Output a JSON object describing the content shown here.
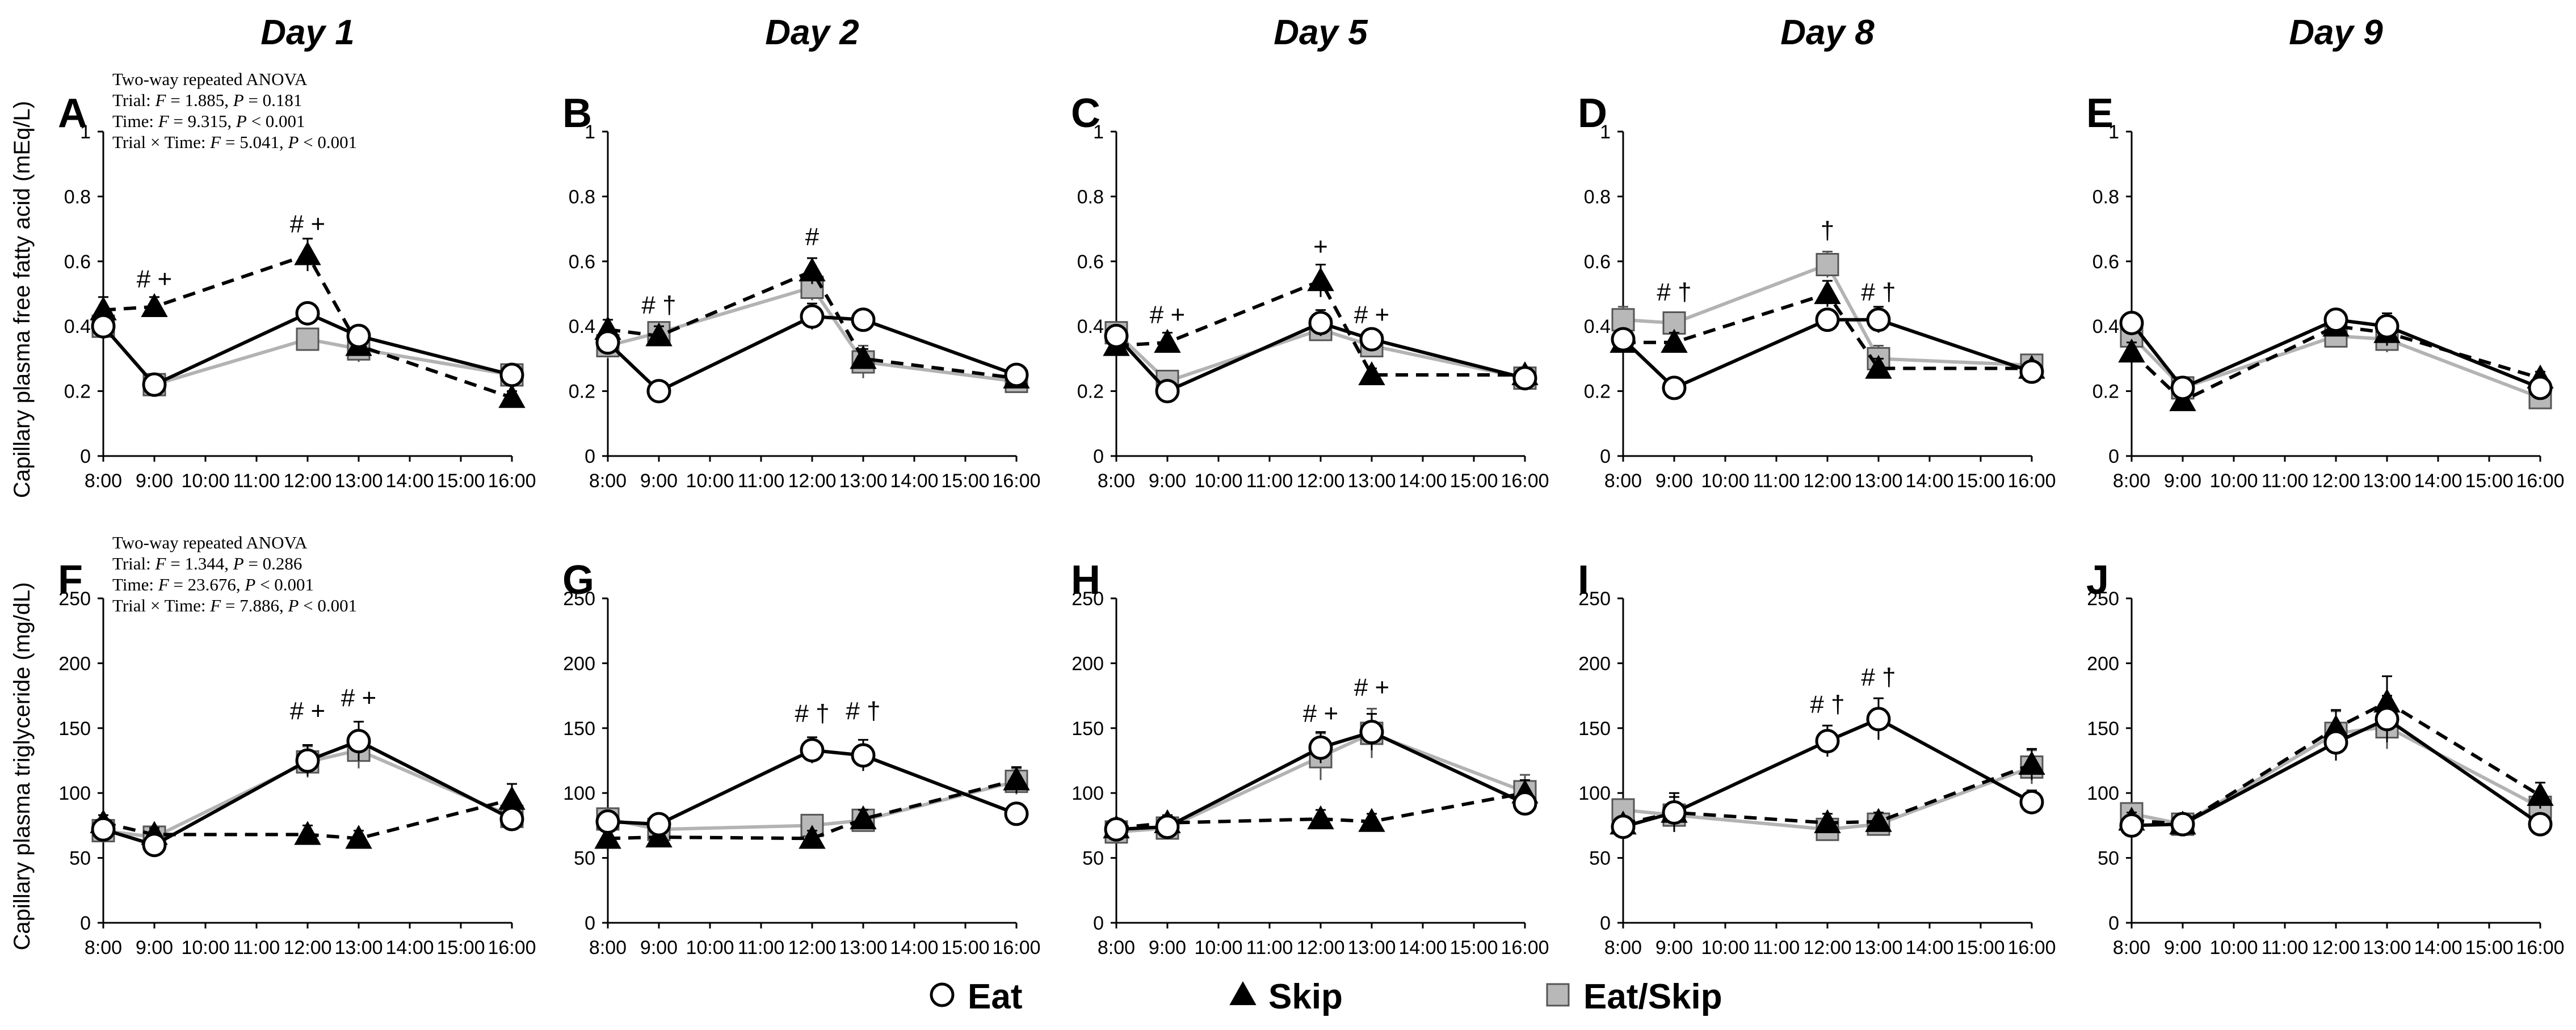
{
  "figure": {
    "day_titles": [
      "Day 1",
      "Day 2",
      "Day 5",
      "Day 8",
      "Day 9"
    ],
    "row_ylabels": [
      "Capillary plasma free fatty acid (mEq/L)",
      "Capillary plasma triglyceride (mg/dL)"
    ],
    "legend": [
      {
        "label": "Eat",
        "marker": "circle-open",
        "line": "solid-black"
      },
      {
        "label": "Skip",
        "marker": "triangle-filled",
        "line": "dashed-black"
      },
      {
        "label": "Eat/Skip",
        "marker": "square-gray",
        "line": "solid-gray"
      }
    ],
    "colors": {
      "eat": "#000000",
      "skip": "#000000",
      "eatskip_line": "#b3b3b3",
      "eatskip_fill": "#b8b8b8"
    },
    "anova": [
      {
        "title": "Two-way repeated ANOVA",
        "trial": [
          "Trial: ",
          "F",
          " = 1.885, ",
          "P",
          " = 0.181"
        ],
        "time": [
          "Time: ",
          "F",
          " = 9.315, ",
          "P",
          " < 0.001"
        ],
        "interaction": [
          "Trial × Time: ",
          "F",
          " = 5.041, ",
          "P",
          " < 0.001"
        ]
      },
      {
        "title": "Two-way repeated ANOVA",
        "trial": [
          "Trial: ",
          "F",
          " = 1.344, ",
          "P",
          " = 0.286"
        ],
        "time": [
          "Time: ",
          "F",
          " = 23.676, ",
          "P",
          " < 0.001"
        ],
        "interaction": [
          "Trial × Time: ",
          "F",
          " = 7.886, ",
          "P",
          " < 0.001"
        ]
      }
    ]
  },
  "chart_data": [
    {
      "panel": "A",
      "type": "line",
      "day": "Day 1",
      "row": 0,
      "col": 0,
      "x": [
        "8:00",
        "9:00",
        "12:00",
        "13:00",
        "16:00"
      ],
      "x_hours": [
        8,
        9,
        12,
        13,
        16
      ],
      "xticks": [
        "8:00",
        "9:00",
        "10:00",
        "11:00",
        "12:00",
        "13:00",
        "14:00",
        "15:00",
        "16:00"
      ],
      "ylim": [
        0,
        1
      ],
      "yticks": [
        0,
        0.2,
        0.4,
        0.6,
        0.8,
        1
      ],
      "ytick_labels": [
        "0",
        "0.2",
        "0.4",
        "0.6",
        "0.8",
        "1"
      ],
      "series": [
        {
          "name": "Eat",
          "values": [
            0.4,
            0.22,
            0.44,
            0.37,
            0.25
          ],
          "err": [
            0.03,
            0.02,
            0.03,
            0.03,
            0.02
          ]
        },
        {
          "name": "Skip",
          "values": [
            0.45,
            0.46,
            0.62,
            0.34,
            0.18
          ],
          "err": [
            0.04,
            0.03,
            0.05,
            0.03,
            0.02
          ]
        },
        {
          "name": "Eat/Skip",
          "values": [
            0.4,
            0.22,
            0.36,
            0.33,
            0.25
          ],
          "err": [
            0.03,
            0.02,
            0.03,
            0.04,
            0.03
          ]
        }
      ],
      "annotations": [
        {
          "x": 9,
          "y": 0.52,
          "text": "# +"
        },
        {
          "x": 12,
          "y": 0.69,
          "text": "# +"
        }
      ]
    },
    {
      "panel": "B",
      "type": "line",
      "day": "Day 2",
      "row": 0,
      "col": 1,
      "x": [
        "8:00",
        "9:00",
        "12:00",
        "13:00",
        "16:00"
      ],
      "x_hours": [
        8,
        9,
        12,
        13,
        16
      ],
      "xticks": [
        "8:00",
        "9:00",
        "10:00",
        "11:00",
        "12:00",
        "13:00",
        "14:00",
        "15:00",
        "16:00"
      ],
      "ylim": [
        0,
        1
      ],
      "yticks": [
        0,
        0.2,
        0.4,
        0.6,
        0.8,
        1
      ],
      "ytick_labels": [
        "0",
        "0.2",
        "0.4",
        "0.6",
        "0.8",
        "1"
      ],
      "series": [
        {
          "name": "Eat",
          "values": [
            0.35,
            0.2,
            0.43,
            0.42,
            0.25
          ],
          "err": [
            0.03,
            0.02,
            0.04,
            0.03,
            0.02
          ]
        },
        {
          "name": "Skip",
          "values": [
            0.39,
            0.37,
            0.57,
            0.3,
            0.24
          ],
          "err": [
            0.03,
            0.03,
            0.04,
            0.03,
            0.02
          ]
        },
        {
          "name": "Eat/Skip",
          "values": [
            0.34,
            0.38,
            0.52,
            0.29,
            0.23
          ],
          "err": [
            0.04,
            0.03,
            0.04,
            0.05,
            0.02
          ]
        }
      ],
      "annotations": [
        {
          "x": 9,
          "y": 0.44,
          "text": "# †"
        },
        {
          "x": 12,
          "y": 0.65,
          "text": "#"
        }
      ]
    },
    {
      "panel": "C",
      "type": "line",
      "day": "Day 5",
      "row": 0,
      "col": 2,
      "x": [
        "8:00",
        "9:00",
        "12:00",
        "13:00",
        "16:00"
      ],
      "x_hours": [
        8,
        9,
        12,
        13,
        16
      ],
      "xticks": [
        "8:00",
        "9:00",
        "10:00",
        "11:00",
        "12:00",
        "13:00",
        "14:00",
        "15:00",
        "16:00"
      ],
      "ylim": [
        0,
        1
      ],
      "yticks": [
        0,
        0.2,
        0.4,
        0.6,
        0.8,
        1
      ],
      "ytick_labels": [
        "0",
        "0.2",
        "0.4",
        "0.6",
        "0.8",
        "1"
      ],
      "series": [
        {
          "name": "Eat",
          "values": [
            0.37,
            0.2,
            0.41,
            0.36,
            0.24
          ],
          "err": [
            0.03,
            0.02,
            0.04,
            0.03,
            0.02
          ]
        },
        {
          "name": "Skip",
          "values": [
            0.34,
            0.35,
            0.54,
            0.25,
            0.25
          ],
          "err": [
            0.03,
            0.03,
            0.05,
            0.02,
            0.02
          ]
        },
        {
          "name": "Eat/Skip",
          "values": [
            0.38,
            0.23,
            0.39,
            0.34,
            0.24
          ],
          "err": [
            0.03,
            0.02,
            0.03,
            0.03,
            0.02
          ]
        }
      ],
      "annotations": [
        {
          "x": 9,
          "y": 0.41,
          "text": "# +"
        },
        {
          "x": 12,
          "y": 0.62,
          "text": "+"
        },
        {
          "x": 13,
          "y": 0.41,
          "text": "# +"
        }
      ]
    },
    {
      "panel": "D",
      "type": "line",
      "day": "Day 8",
      "row": 0,
      "col": 3,
      "x": [
        "8:00",
        "9:00",
        "12:00",
        "13:00",
        "16:00"
      ],
      "x_hours": [
        8,
        9,
        12,
        13,
        16
      ],
      "xticks": [
        "8:00",
        "9:00",
        "10:00",
        "11:00",
        "12:00",
        "13:00",
        "14:00",
        "15:00",
        "16:00"
      ],
      "ylim": [
        0,
        1
      ],
      "yticks": [
        0,
        0.2,
        0.4,
        0.6,
        0.8,
        1
      ],
      "ytick_labels": [
        "0",
        "0.2",
        "0.4",
        "0.6",
        "0.8",
        "1"
      ],
      "series": [
        {
          "name": "Eat",
          "values": [
            0.36,
            0.21,
            0.42,
            0.42,
            0.26
          ],
          "err": [
            0.03,
            0.02,
            0.03,
            0.04,
            0.02
          ]
        },
        {
          "name": "Skip",
          "values": [
            0.35,
            0.35,
            0.5,
            0.27,
            0.27
          ],
          "err": [
            0.03,
            0.03,
            0.04,
            0.03,
            0.02
          ]
        },
        {
          "name": "Eat/Skip",
          "values": [
            0.42,
            0.41,
            0.59,
            0.3,
            0.28
          ],
          "err": [
            0.04,
            0.03,
            0.04,
            0.04,
            0.02
          ]
        }
      ],
      "annotations": [
        {
          "x": 9,
          "y": 0.48,
          "text": "# †"
        },
        {
          "x": 12,
          "y": 0.67,
          "text": "†"
        },
        {
          "x": 13,
          "y": 0.48,
          "text": "# †"
        }
      ]
    },
    {
      "panel": "E",
      "type": "line",
      "day": "Day 9",
      "row": 0,
      "col": 4,
      "x": [
        "8:00",
        "9:00",
        "12:00",
        "13:00",
        "16:00"
      ],
      "x_hours": [
        8,
        9,
        12,
        13,
        16
      ],
      "xticks": [
        "8:00",
        "9:00",
        "10:00",
        "11:00",
        "12:00",
        "13:00",
        "14:00",
        "15:00",
        "16:00"
      ],
      "ylim": [
        0,
        1
      ],
      "yticks": [
        0,
        0.2,
        0.4,
        0.6,
        0.8,
        1
      ],
      "ytick_labels": [
        "0",
        "0.2",
        "0.4",
        "0.6",
        "0.8",
        "1"
      ],
      "series": [
        {
          "name": "Eat",
          "values": [
            0.41,
            0.21,
            0.42,
            0.4,
            0.21
          ],
          "err": [
            0.03,
            0.02,
            0.03,
            0.04,
            0.02
          ]
        },
        {
          "name": "Skip",
          "values": [
            0.32,
            0.17,
            0.4,
            0.38,
            0.24
          ],
          "err": [
            0.03,
            0.02,
            0.03,
            0.04,
            0.02
          ]
        },
        {
          "name": "Eat/Skip",
          "values": [
            0.37,
            0.21,
            0.37,
            0.36,
            0.18
          ],
          "err": [
            0.03,
            0.02,
            0.03,
            0.04,
            0.02
          ]
        }
      ],
      "annotations": []
    },
    {
      "panel": "F",
      "type": "line",
      "day": "Day 1",
      "row": 1,
      "col": 0,
      "x": [
        "8:00",
        "9:00",
        "12:00",
        "13:00",
        "16:00"
      ],
      "x_hours": [
        8,
        9,
        12,
        13,
        16
      ],
      "xticks": [
        "8:00",
        "9:00",
        "10:00",
        "11:00",
        "12:00",
        "13:00",
        "14:00",
        "15:00",
        "16:00"
      ],
      "ylim": [
        0,
        250
      ],
      "yticks": [
        0,
        50,
        100,
        150,
        200,
        250
      ],
      "ytick_labels": [
        "0",
        "50",
        "100",
        "150",
        "200",
        "250"
      ],
      "series": [
        {
          "name": "Eat",
          "values": [
            72,
            60,
            125,
            140,
            80
          ],
          "err": [
            6,
            5,
            12,
            15,
            8
          ]
        },
        {
          "name": "Skip",
          "values": [
            77,
            68,
            68,
            65,
            95
          ],
          "err": [
            6,
            5,
            7,
            6,
            12
          ]
        },
        {
          "name": "Eat/Skip",
          "values": [
            71,
            66,
            124,
            133,
            82
          ],
          "err": [
            6,
            5,
            12,
            14,
            9
          ]
        }
      ],
      "annotations": [
        {
          "x": 12,
          "y": 157,
          "text": "# +"
        },
        {
          "x": 13,
          "y": 167,
          "text": "# +"
        }
      ]
    },
    {
      "panel": "G",
      "type": "line",
      "day": "Day 2",
      "row": 1,
      "col": 1,
      "x": [
        "8:00",
        "9:00",
        "12:00",
        "13:00",
        "16:00"
      ],
      "x_hours": [
        8,
        9,
        12,
        13,
        16
      ],
      "xticks": [
        "8:00",
        "9:00",
        "10:00",
        "11:00",
        "12:00",
        "13:00",
        "14:00",
        "15:00",
        "16:00"
      ],
      "ylim": [
        0,
        250
      ],
      "yticks": [
        0,
        50,
        100,
        150,
        200,
        250
      ],
      "ytick_labels": [
        "0",
        "50",
        "100",
        "150",
        "200",
        "250"
      ],
      "series": [
        {
          "name": "Eat",
          "values": [
            78,
            76,
            133,
            129,
            84
          ],
          "err": [
            6,
            6,
            10,
            12,
            7
          ]
        },
        {
          "name": "Skip",
          "values": [
            65,
            66,
            65,
            80,
            110
          ],
          "err": [
            6,
            5,
            6,
            7,
            10
          ]
        },
        {
          "name": "Eat/Skip",
          "values": [
            80,
            72,
            75,
            79,
            109
          ],
          "err": [
            6,
            6,
            8,
            7,
            10
          ]
        }
      ],
      "annotations": [
        {
          "x": 12,
          "y": 155,
          "text": "# †"
        },
        {
          "x": 13,
          "y": 157,
          "text": "# †"
        }
      ]
    },
    {
      "panel": "H",
      "type": "line",
      "day": "Day 5",
      "row": 1,
      "col": 2,
      "x": [
        "8:00",
        "9:00",
        "12:00",
        "13:00",
        "16:00"
      ],
      "x_hours": [
        8,
        9,
        12,
        13,
        16
      ],
      "xticks": [
        "8:00",
        "9:00",
        "10:00",
        "11:00",
        "12:00",
        "13:00",
        "14:00",
        "15:00",
        "16:00"
      ],
      "ylim": [
        0,
        250
      ],
      "yticks": [
        0,
        50,
        100,
        150,
        200,
        250
      ],
      "ytick_labels": [
        "0",
        "50",
        "100",
        "150",
        "200",
        "250"
      ],
      "series": [
        {
          "name": "Eat",
          "values": [
            72,
            74,
            135,
            147,
            92
          ],
          "err": [
            6,
            6,
            12,
            14,
            9
          ]
        },
        {
          "name": "Skip",
          "values": [
            73,
            77,
            80,
            78,
            100
          ],
          "err": [
            6,
            6,
            7,
            6,
            10
          ]
        },
        {
          "name": "Eat/Skip",
          "values": [
            70,
            73,
            128,
            146,
            101
          ],
          "err": [
            6,
            6,
            18,
            19,
            13
          ]
        }
      ],
      "annotations": [
        {
          "x": 12,
          "y": 155,
          "text": "# +"
        },
        {
          "x": 13,
          "y": 175,
          "text": "# +"
        }
      ]
    },
    {
      "panel": "I",
      "type": "line",
      "day": "Day 8",
      "row": 1,
      "col": 3,
      "x": [
        "8:00",
        "9:00",
        "12:00",
        "13:00",
        "16:00"
      ],
      "x_hours": [
        8,
        9,
        12,
        13,
        16
      ],
      "xticks": [
        "8:00",
        "9:00",
        "10:00",
        "11:00",
        "12:00",
        "13:00",
        "14:00",
        "15:00",
        "16:00"
      ],
      "ylim": [
        0,
        250
      ],
      "yticks": [
        0,
        50,
        100,
        150,
        200,
        250
      ],
      "ytick_labels": [
        "0",
        "50",
        "100",
        "150",
        "200",
        "250"
      ],
      "series": [
        {
          "name": "Eat",
          "values": [
            74,
            85,
            140,
            157,
            93
          ],
          "err": [
            6,
            15,
            12,
            16,
            9
          ]
        },
        {
          "name": "Skip",
          "values": [
            76,
            85,
            77,
            78,
            122
          ],
          "err": [
            6,
            12,
            7,
            7,
            12
          ]
        },
        {
          "name": "Eat/Skip",
          "values": [
            87,
            83,
            72,
            76,
            120
          ],
          "err": [
            6,
            10,
            7,
            7,
            13
          ]
        }
      ],
      "annotations": [
        {
          "x": 12,
          "y": 162,
          "text": "# †"
        },
        {
          "x": 13,
          "y": 183,
          "text": "# †"
        }
      ]
    },
    {
      "panel": "J",
      "type": "line",
      "day": "Day 9",
      "row": 1,
      "col": 4,
      "x": [
        "8:00",
        "9:00",
        "12:00",
        "13:00",
        "16:00"
      ],
      "x_hours": [
        8,
        9,
        12,
        13,
        16
      ],
      "xticks": [
        "8:00",
        "9:00",
        "10:00",
        "11:00",
        "12:00",
        "13:00",
        "14:00",
        "15:00",
        "16:00"
      ],
      "ylim": [
        0,
        250
      ],
      "yticks": [
        0,
        50,
        100,
        150,
        200,
        250
      ],
      "ytick_labels": [
        "0",
        "50",
        "100",
        "150",
        "200",
        "250"
      ],
      "series": [
        {
          "name": "Eat",
          "values": [
            75,
            76,
            139,
            157,
            76
          ],
          "err": [
            6,
            6,
            14,
            18,
            8
          ]
        },
        {
          "name": "Skip",
          "values": [
            79,
            76,
            150,
            170,
            98
          ],
          "err": [
            6,
            6,
            14,
            20,
            10
          ]
        },
        {
          "name": "Eat/Skip",
          "values": [
            84,
            76,
            146,
            151,
            89
          ],
          "err": [
            6,
            6,
            17,
            17,
            10
          ]
        }
      ],
      "annotations": []
    }
  ]
}
